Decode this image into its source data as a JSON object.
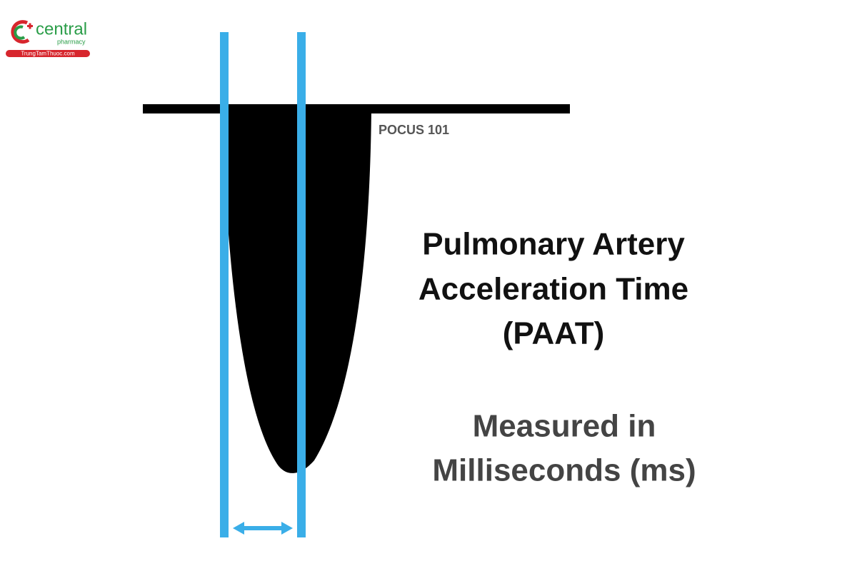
{
  "logo": {
    "name": "central",
    "subtitle": "pharmacy",
    "site": "TrungTamThuoc.com"
  },
  "watermark": "POCUS 101",
  "title": {
    "lines": [
      "Pulmonary Artery",
      "Acceleration Time",
      "(PAAT)"
    ]
  },
  "note": {
    "lines": [
      "Measured in",
      "Milliseconds (ms)"
    ]
  }
}
